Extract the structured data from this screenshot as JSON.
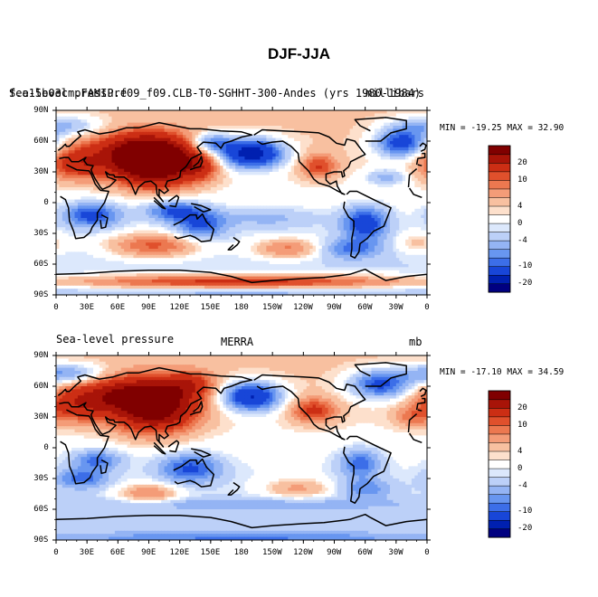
{
  "figure_title": "DJF-JJA",
  "chart_data": [
    {
      "type": "heatmap",
      "id": "top",
      "title_left": "Sea-level pressure",
      "title_center_overlap": "f.e15b03cm.FAMIP.f09_f09.CLB-T0-SGHHT-300-Andes (yrs 1980-1984)",
      "title_right": "millibars",
      "stats": "MIN = -19.25  MAX =  32.90",
      "x_tick_labels": [
        "0",
        "30E",
        "60E",
        "90E",
        "120E",
        "150E",
        "180",
        "150W",
        "120W",
        "90W",
        "60W",
        "30W",
        "0"
      ],
      "y_tick_labels": [
        "90N",
        "60N",
        "30N",
        "0",
        "30S",
        "60S",
        "90S"
      ],
      "xlim": [
        0,
        360
      ],
      "ylim": [
        -90,
        90
      ],
      "colorbar_levels": [
        -25,
        -20,
        -15,
        -10,
        -8,
        -6,
        -4,
        -2,
        0,
        2,
        4,
        6,
        8,
        10,
        15,
        20,
        25
      ],
      "colorbar_labels": [
        "20",
        "10",
        "4",
        "0",
        "-4",
        "-10",
        "-20"
      ],
      "anomalies": [
        {
          "lon": 95,
          "lat": 38,
          "rx": 38,
          "ry": 22,
          "amp": 27
        },
        {
          "lon": 80,
          "lat": 50,
          "rx": 45,
          "ry": 18,
          "amp": 14
        },
        {
          "lon": 20,
          "lat": 38,
          "rx": 28,
          "ry": 16,
          "amp": 11
        },
        {
          "lon": 140,
          "lat": 35,
          "rx": 18,
          "ry": 14,
          "amp": 8
        },
        {
          "lon": 190,
          "lat": 48,
          "rx": 30,
          "ry": 14,
          "amp": -20
        },
        {
          "lon": 150,
          "lat": 58,
          "rx": 20,
          "ry": 10,
          "amp": -10
        },
        {
          "lon": 255,
          "lat": 35,
          "rx": 18,
          "ry": 12,
          "amp": 9
        },
        {
          "lon": 335,
          "lat": 58,
          "rx": 25,
          "ry": 14,
          "amp": -14
        },
        {
          "lon": 5,
          "lat": 75,
          "rx": 40,
          "ry": 10,
          "amp": -7
        },
        {
          "lon": 320,
          "lat": 25,
          "rx": 20,
          "ry": 8,
          "amp": -6
        },
        {
          "lon": 35,
          "lat": -12,
          "rx": 28,
          "ry": 12,
          "amp": -11
        },
        {
          "lon": 115,
          "lat": -8,
          "rx": 28,
          "ry": 10,
          "amp": -10
        },
        {
          "lon": 140,
          "lat": -22,
          "rx": 25,
          "ry": 14,
          "amp": -9
        },
        {
          "lon": 300,
          "lat": -20,
          "rx": 22,
          "ry": 16,
          "amp": -12
        },
        {
          "lon": 285,
          "lat": -45,
          "rx": 30,
          "ry": 10,
          "amp": -7
        },
        {
          "lon": 205,
          "lat": -15,
          "rx": 50,
          "ry": 10,
          "amp": -4
        },
        {
          "lon": 95,
          "lat": -42,
          "rx": 45,
          "ry": 12,
          "amp": 10
        },
        {
          "lon": 225,
          "lat": -45,
          "rx": 35,
          "ry": 10,
          "amp": 8
        },
        {
          "lon": 350,
          "lat": -40,
          "rx": 20,
          "ry": 10,
          "amp": 4
        },
        {
          "lon": 180,
          "lat": -78,
          "rx": 180,
          "ry": 8,
          "amp": 14
        },
        {
          "lon": 180,
          "lat": -86,
          "rx": 180,
          "ry": 6,
          "amp": -5
        }
      ]
    },
    {
      "type": "heatmap",
      "id": "bottom",
      "title_left": "Sea-level pressure",
      "title_center": "MERRA",
      "title_right": "mb",
      "stats": "MIN = -17.10  MAX =  34.59",
      "x_tick_labels": [
        "0",
        "30E",
        "60E",
        "90E",
        "120E",
        "150E",
        "180",
        "150W",
        "120W",
        "90W",
        "60W",
        "30W",
        "0"
      ],
      "y_tick_labels": [
        "90N",
        "60N",
        "30N",
        "0",
        "30S",
        "60S",
        "90S"
      ],
      "xlim": [
        0,
        360
      ],
      "ylim": [
        -90,
        90
      ],
      "colorbar_levels": [
        -25,
        -20,
        -15,
        -10,
        -8,
        -6,
        -4,
        -2,
        0,
        2,
        4,
        6,
        8,
        10,
        15,
        20,
        25
      ],
      "colorbar_labels": [
        "20",
        "10",
        "4",
        "0",
        "-4",
        "-10",
        "-20"
      ],
      "anomalies": [
        {
          "lon": 95,
          "lat": 40,
          "rx": 40,
          "ry": 24,
          "amp": 24
        },
        {
          "lon": 60,
          "lat": 52,
          "rx": 50,
          "ry": 16,
          "amp": 12
        },
        {
          "lon": 20,
          "lat": 40,
          "rx": 30,
          "ry": 16,
          "amp": 9
        },
        {
          "lon": 130,
          "lat": 62,
          "rx": 22,
          "ry": 12,
          "amp": 9
        },
        {
          "lon": 190,
          "lat": 50,
          "rx": 28,
          "ry": 14,
          "amp": -17
        },
        {
          "lon": 250,
          "lat": 36,
          "rx": 22,
          "ry": 12,
          "amp": 10
        },
        {
          "lon": 315,
          "lat": 62,
          "rx": 30,
          "ry": 14,
          "amp": -13
        },
        {
          "lon": 10,
          "lat": 72,
          "rx": 35,
          "ry": 10,
          "amp": -9
        },
        {
          "lon": 345,
          "lat": 30,
          "rx": 18,
          "ry": 10,
          "amp": 5
        },
        {
          "lon": 40,
          "lat": -12,
          "rx": 25,
          "ry": 10,
          "amp": -8
        },
        {
          "lon": 130,
          "lat": -20,
          "rx": 30,
          "ry": 14,
          "amp": -10
        },
        {
          "lon": 295,
          "lat": -15,
          "rx": 20,
          "ry": 14,
          "amp": -9
        },
        {
          "lon": 300,
          "lat": -40,
          "rx": 25,
          "ry": 10,
          "amp": -6
        },
        {
          "lon": 25,
          "lat": -30,
          "rx": 25,
          "ry": 10,
          "amp": -8
        },
        {
          "lon": 90,
          "lat": -45,
          "rx": 30,
          "ry": 10,
          "amp": 8
        },
        {
          "lon": 235,
          "lat": -40,
          "rx": 35,
          "ry": 10,
          "amp": 6
        },
        {
          "lon": 180,
          "lat": -55,
          "rx": 180,
          "ry": 6,
          "amp": -4
        },
        {
          "lon": 180,
          "lat": -88,
          "rx": 180,
          "ry": 6,
          "amp": -6
        }
      ]
    }
  ],
  "colorbar_colors": [
    "#000080",
    "#0020b0",
    "#1846d8",
    "#3c6ee8",
    "#6896f0",
    "#94b4f4",
    "#bcd0f8",
    "#dce8fc",
    "#ffffff",
    "#fde0cc",
    "#f8c0a0",
    "#f49c78",
    "#ec7850",
    "#e0502c",
    "#cc2e14",
    "#a81408",
    "#800000"
  ]
}
